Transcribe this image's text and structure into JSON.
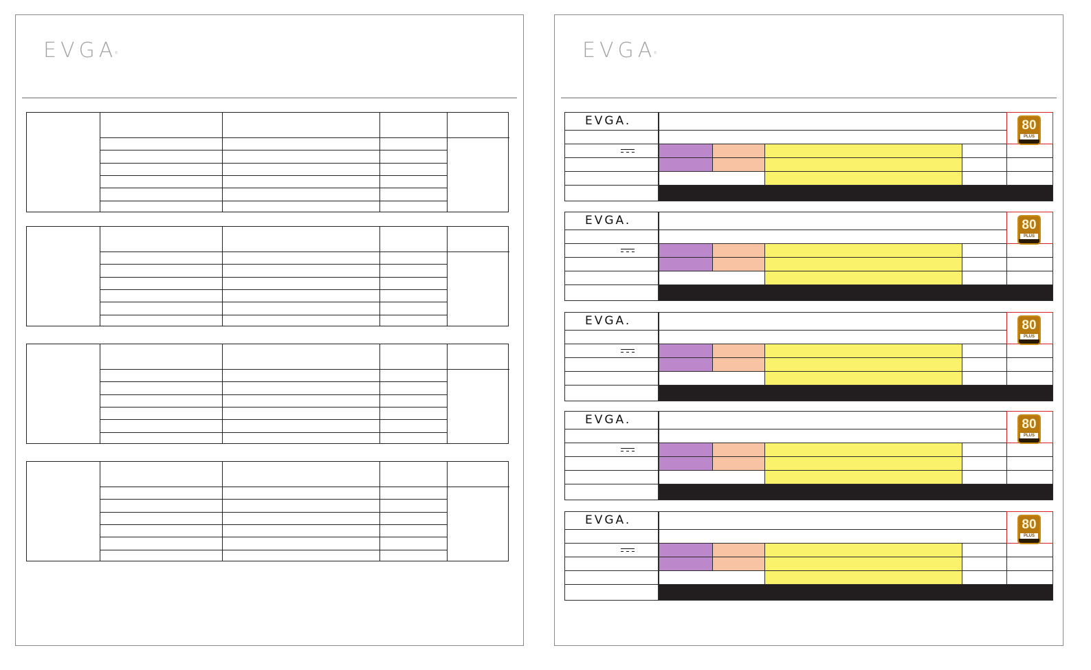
{
  "left_page": {
    "brand_logo": "EVGA",
    "spec_tables": [
      {
        "id": 1
      },
      {
        "id": 2
      },
      {
        "id": 3
      },
      {
        "id": 4
      }
    ]
  },
  "right_page": {
    "brand_logo": "EVGA",
    "labels": [
      {
        "id": 1,
        "logo": "EVGA.",
        "badge_number": "80",
        "badge_text": "PLUS"
      },
      {
        "id": 2,
        "logo": "EVGA.",
        "badge_number": "80",
        "badge_text": "PLUS"
      },
      {
        "id": 3,
        "logo": "EVGA.",
        "badge_number": "80",
        "badge_text": "PLUS"
      },
      {
        "id": 4,
        "logo": "EVGA.",
        "badge_number": "80",
        "badge_text": "PLUS"
      },
      {
        "id": 5,
        "logo": "EVGA.",
        "badge_number": "80",
        "badge_text": "PLUS"
      }
    ],
    "colors": {
      "purple": "#bd87cc",
      "peach": "#f8c3a3",
      "yellow": "#fbf26b",
      "black": "#221e1f",
      "badge_border": "#d22020",
      "badge_gold": "#b7790f"
    },
    "icons": [
      "dc-current-icon",
      "80-plus-badge-icon"
    ]
  }
}
